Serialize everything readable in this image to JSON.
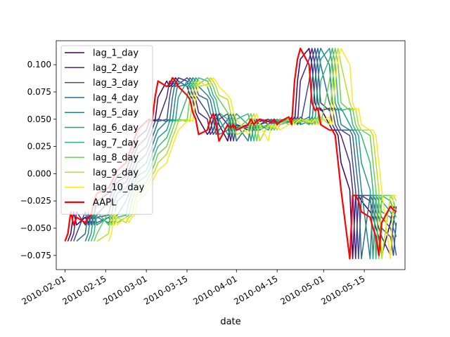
{
  "chart_data": {
    "type": "line",
    "title": "",
    "xlabel": "date",
    "ylabel": "",
    "grid": false,
    "legend_placement": "upper-left",
    "xlim": [
      "2010-01-29",
      "2010-05-29"
    ],
    "ylim": [
      -0.088,
      0.122
    ],
    "x_ticks": [
      "2010-02-01",
      "2010-02-15",
      "2010-03-01",
      "2010-03-15",
      "2010-04-01",
      "2010-04-15",
      "2010-05-01",
      "2010-05-15"
    ],
    "y_ticks": [
      -0.075,
      -0.05,
      -0.025,
      0.0,
      0.025,
      0.05,
      0.075,
      0.1
    ],
    "y_tick_labels": [
      "−0.075",
      "−0.050",
      "−0.025",
      "0.000",
      "0.025",
      "0.050",
      "0.075",
      "0.100"
    ],
    "base_series": {
      "name": "AAPL",
      "color": "#ff0000",
      "points": [
        [
          "2010-02-01",
          -0.062
        ],
        [
          "2010-02-02",
          -0.055
        ],
        [
          "2010-02-03",
          -0.035
        ],
        [
          "2010-02-04",
          -0.047
        ],
        [
          "2010-02-05",
          -0.04
        ],
        [
          "2010-02-08",
          -0.045
        ],
        [
          "2010-02-09",
          -0.04
        ],
        [
          "2010-02-10",
          -0.038
        ],
        [
          "2010-02-11",
          -0.025
        ],
        [
          "2010-02-12",
          -0.018
        ],
        [
          "2010-02-16",
          -0.013
        ],
        [
          "2010-02-17",
          -0.008
        ],
        [
          "2010-02-18",
          -0.002
        ],
        [
          "2010-02-19",
          0.003
        ],
        [
          "2010-02-22",
          0.01
        ],
        [
          "2010-02-23",
          0.018
        ],
        [
          "2010-02-24",
          0.025
        ],
        [
          "2010-02-25",
          0.033
        ],
        [
          "2010-02-26",
          0.04
        ],
        [
          "2010-03-01",
          0.048
        ],
        [
          "2010-03-02",
          0.05
        ],
        [
          "2010-03-03",
          0.048
        ],
        [
          "2010-03-04",
          0.07
        ],
        [
          "2010-03-05",
          0.085
        ],
        [
          "2010-03-08",
          0.08
        ],
        [
          "2010-03-09",
          0.082
        ],
        [
          "2010-03-10",
          0.088
        ],
        [
          "2010-03-11",
          0.085
        ],
        [
          "2010-03-12",
          0.08
        ],
        [
          "2010-03-15",
          0.072
        ],
        [
          "2010-03-16",
          0.068
        ],
        [
          "2010-03-17",
          0.056
        ],
        [
          "2010-03-18",
          0.05
        ],
        [
          "2010-03-19",
          0.036
        ],
        [
          "2010-03-22",
          0.04
        ],
        [
          "2010-03-23",
          0.05
        ],
        [
          "2010-03-24",
          0.055
        ],
        [
          "2010-03-25",
          0.045
        ],
        [
          "2010-03-26",
          0.03
        ],
        [
          "2010-03-29",
          0.045
        ],
        [
          "2010-03-30",
          0.042
        ],
        [
          "2010-03-31",
          0.045
        ],
        [
          "2010-04-01",
          0.04
        ],
        [
          "2010-04-05",
          0.045
        ],
        [
          "2010-04-06",
          0.05
        ],
        [
          "2010-04-07",
          0.045
        ],
        [
          "2010-04-08",
          0.048
        ],
        [
          "2010-04-09",
          0.05
        ],
        [
          "2010-04-12",
          0.048
        ],
        [
          "2010-04-13",
          0.047
        ],
        [
          "2010-04-14",
          0.05
        ],
        [
          "2010-04-15",
          0.045
        ],
        [
          "2010-04-16",
          0.048
        ],
        [
          "2010-04-19",
          0.052
        ],
        [
          "2010-04-20",
          0.045
        ],
        [
          "2010-04-21",
          0.085
        ],
        [
          "2010-04-22",
          0.105
        ],
        [
          "2010-04-23",
          0.115
        ],
        [
          "2010-04-26",
          0.1
        ],
        [
          "2010-04-27",
          0.065
        ],
        [
          "2010-04-28",
          0.058
        ],
        [
          "2010-04-29",
          0.06
        ],
        [
          "2010-04-30",
          0.045
        ],
        [
          "2010-05-03",
          0.04
        ],
        [
          "2010-05-04",
          0.04
        ],
        [
          "2010-05-05",
          0.035
        ],
        [
          "2010-05-06",
          0.01
        ],
        [
          "2010-05-07",
          -0.015
        ],
        [
          "2010-05-10",
          -0.078
        ],
        [
          "2010-05-11",
          -0.02
        ],
        [
          "2010-05-12",
          -0.02
        ],
        [
          "2010-05-13",
          -0.025
        ],
        [
          "2010-05-14",
          -0.035
        ],
        [
          "2010-05-17",
          -0.04
        ],
        [
          "2010-05-18",
          -0.05
        ],
        [
          "2010-05-19",
          -0.058
        ],
        [
          "2010-05-20",
          -0.075
        ],
        [
          "2010-05-21",
          -0.045
        ],
        [
          "2010-05-24",
          -0.03
        ],
        [
          "2010-05-25",
          -0.033
        ],
        [
          "2010-05-26",
          -0.035
        ]
      ]
    },
    "lag_series": [
      {
        "name": "lag_1_day",
        "lag": 1,
        "color": "#440154"
      },
      {
        "name": "lag_2_day",
        "lag": 2,
        "color": "#482878"
      },
      {
        "name": "lag_3_day",
        "lag": 3,
        "color": "#3e4989"
      },
      {
        "name": "lag_4_day",
        "lag": 4,
        "color": "#31688e"
      },
      {
        "name": "lag_5_day",
        "lag": 5,
        "color": "#26828e"
      },
      {
        "name": "lag_6_day",
        "lag": 6,
        "color": "#1f9e89"
      },
      {
        "name": "lag_7_day",
        "lag": 7,
        "color": "#35b779"
      },
      {
        "name": "lag_8_day",
        "lag": 8,
        "color": "#6ece58"
      },
      {
        "name": "lag_9_day",
        "lag": 9,
        "color": "#b5de2b"
      },
      {
        "name": "lag_10_day",
        "lag": 10,
        "color": "#fde725"
      }
    ]
  }
}
